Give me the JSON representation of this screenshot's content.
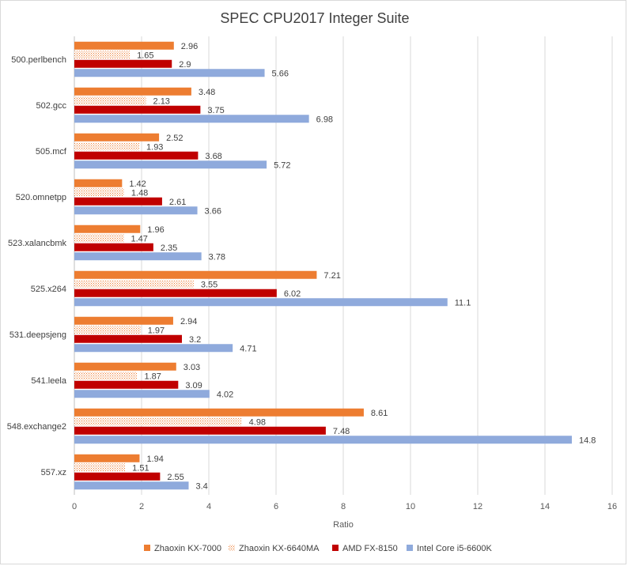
{
  "chart_data": {
    "type": "bar",
    "orientation": "horizontal",
    "title": "SPEC CPU2017 Integer Suite",
    "xlabel": "Ratio",
    "ylabel": "",
    "xlim": [
      0,
      16
    ],
    "xticks": [
      0,
      2,
      4,
      6,
      8,
      10,
      12,
      14,
      16
    ],
    "grid": true,
    "legend_position": "bottom",
    "categories": [
      "500.perlbench",
      "502.gcc",
      "505.mcf",
      "520.omnetpp",
      "523.xalancbmk",
      "525.x264",
      "531.deepsjeng",
      "541.leela",
      "548.exchange2",
      "557.xz"
    ],
    "series": [
      {
        "name": "Zhaoxin KX-7000",
        "color": "#ed7d31",
        "pattern": "solid",
        "values": [
          2.96,
          3.48,
          2.52,
          1.42,
          1.96,
          7.21,
          2.94,
          3.03,
          8.61,
          1.94
        ]
      },
      {
        "name": "Zhaoxin KX-6640MA",
        "color": "#ed7d31",
        "pattern": "dotted",
        "values": [
          1.65,
          2.13,
          1.93,
          1.48,
          1.47,
          3.55,
          1.97,
          1.87,
          4.98,
          1.51
        ]
      },
      {
        "name": "AMD FX-8150",
        "color": "#c00000",
        "pattern": "solid",
        "values": [
          2.9,
          3.75,
          3.68,
          2.61,
          2.35,
          6.02,
          3.2,
          3.09,
          7.48,
          2.55
        ]
      },
      {
        "name": "Intel Core i5-6600K",
        "color": "#8faadc",
        "pattern": "solid",
        "values": [
          5.66,
          6.98,
          5.72,
          3.66,
          3.78,
          11.1,
          4.71,
          4.02,
          14.8,
          3.4
        ]
      }
    ]
  }
}
